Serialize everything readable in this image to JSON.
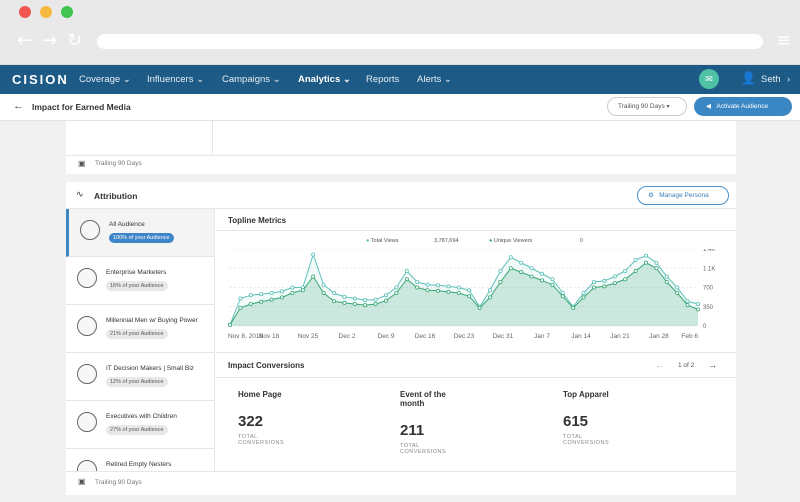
{
  "browser": {
    "address": ""
  },
  "nav": {
    "logo": "CISION",
    "items": [
      "Coverage",
      "Influencers",
      "Campaigns",
      "Analytics",
      "Reports",
      "Alerts"
    ],
    "user": "Seth"
  },
  "subheader": {
    "title": "Impact for Earned Media",
    "trailing": "Trailing 90 Days",
    "activate": "Activate Audience"
  },
  "top_card": {
    "footer": "Trailing 90 Days"
  },
  "attribution": {
    "title": "Attribution",
    "manage": "Manage Persona",
    "footer": "Trailing 90 Days"
  },
  "personas": [
    {
      "name": "All Audience",
      "share": "100% of your Audience",
      "selected": true
    },
    {
      "name": "Enterprise Marketers",
      "share": "16% of your Audience"
    },
    {
      "name": "Millennial Men w/ Buying Power",
      "share": "21% of your Audience"
    },
    {
      "name": "IT Decision Makers | Small Biz",
      "share": "12% of your Audience"
    },
    {
      "name": "Executives with Children",
      "share": "27% of your Audience"
    },
    {
      "name": "Retired Empty Nesters",
      "share": ""
    }
  ],
  "topline": {
    "title": "Topline Metrics",
    "legend": [
      {
        "name": "Total Views",
        "value": "3,787,694"
      },
      {
        "name": "Unique Viewers",
        "value": "0"
      }
    ]
  },
  "chart_data": {
    "type": "area",
    "x_ticks": [
      "Nov 8, 2018",
      "Nov 18",
      "Nov 25",
      "Dec 2",
      "Dec 9",
      "Dec 16",
      "Dec 23",
      "Dec 31",
      "Jan 7",
      "Jan 14",
      "Jan 21",
      "Jan 28",
      "Feb 6"
    ],
    "y_ticks": [
      "1.4K",
      "1.1K",
      "700",
      "350",
      "0"
    ],
    "ylim": [
      0,
      1400
    ],
    "series": [
      {
        "name": "Total Views",
        "color": "#5cc0b9",
        "values": [
          20,
          500,
          560,
          580,
          600,
          630,
          700,
          700,
          1300,
          750,
          600,
          530,
          500,
          470,
          480,
          560,
          700,
          1000,
          800,
          750,
          740,
          720,
          700,
          650,
          350,
          650,
          1000,
          1250,
          1150,
          1050,
          950,
          850,
          600,
          350,
          600,
          800,
          820,
          900,
          1000,
          1200,
          1280,
          1150,
          900,
          700,
          450,
          400
        ]
      },
      {
        "name": "Unique Viewers",
        "color": "#3aa775",
        "values": [
          20,
          330,
          400,
          440,
          480,
          520,
          600,
          650,
          900,
          600,
          450,
          420,
          400,
          380,
          400,
          460,
          600,
          850,
          700,
          650,
          640,
          620,
          600,
          540,
          330,
          520,
          800,
          1050,
          980,
          900,
          830,
          750,
          540,
          330,
          520,
          700,
          720,
          780,
          850,
          1000,
          1150,
          1050,
          800,
          600,
          380,
          300
        ]
      }
    ]
  },
  "conversions": {
    "title": "Impact Conversions",
    "pager": "1 of 2",
    "items": [
      {
        "title": "Home Page",
        "value": "322",
        "label": "TOTAL CONVERSIONS"
      },
      {
        "title": "Event of the month",
        "value": "211",
        "label": "TOTAL CONVERSIONS"
      },
      {
        "title": "Top Apparel",
        "value": "615",
        "label": "TOTAL CONVERSIONS"
      }
    ]
  }
}
